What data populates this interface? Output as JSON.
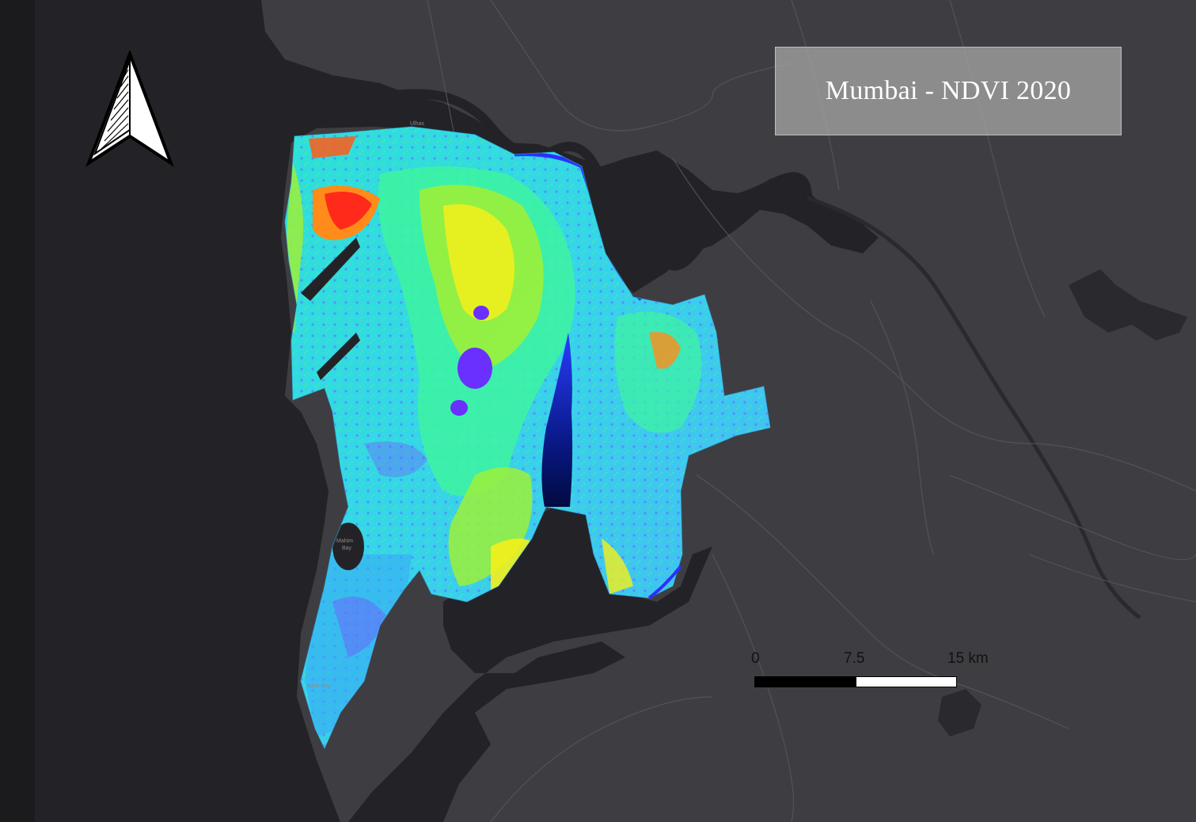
{
  "map": {
    "title": "Mumbai - NDVI 2020",
    "scale_bar": {
      "labels": [
        "0",
        "7.5",
        "15 km"
      ]
    },
    "place_labels": [
      "Mahim Bay",
      "Back Bay",
      "Ulhas"
    ],
    "north_arrow": {
      "icon": "north-arrow-icon"
    },
    "colors": {
      "background_land": "#3e3e42",
      "water": "#232327",
      "ndvi_ramp": [
        "#0a1a8c",
        "#3b2bff",
        "#7a4cff",
        "#2ab8ff",
        "#1fe8e8",
        "#3df5a0",
        "#9cf03a",
        "#f4f01a",
        "#ff8c1a",
        "#ff2a1a"
      ]
    }
  }
}
